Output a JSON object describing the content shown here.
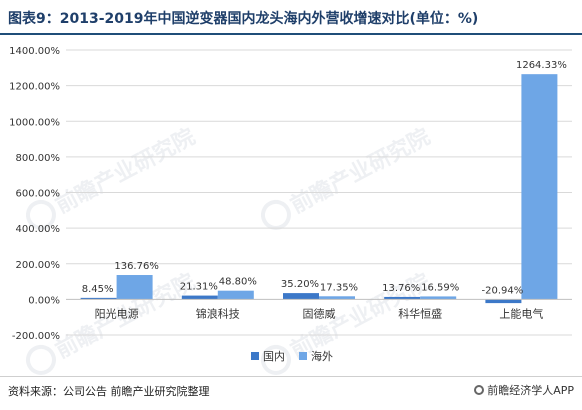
{
  "title": "图表9：2013-2019年中国逆变器国内龙头海内外营收增速对比(单位：%)",
  "source": "资料来源：公司公告  前瞻产业研究院整理",
  "brand": "前瞻经济学人APP",
  "watermark": "前瞻产业研究院",
  "colors": {
    "domestic": "#3c78c8",
    "overseas": "#6ea6e6",
    "grid": "#d9d9d9",
    "title": "#1f3f6a"
  },
  "chart_data": {
    "type": "bar",
    "title": "图表9：2013-2019年中国逆变器国内龙头海内外营收增速对比(单位：%)",
    "categories": [
      "阳光电源",
      "锦浪科技",
      "固德威",
      "科华恒盛",
      "上能电气"
    ],
    "series": [
      {
        "name": "国内",
        "values": [
          8.45,
          21.31,
          35.2,
          13.76,
          -20.94
        ],
        "labels": [
          "8.45%",
          "21.31%",
          "35.20%",
          "13.76%",
          "-20.94%"
        ]
      },
      {
        "name": "海外",
        "values": [
          136.76,
          48.8,
          17.35,
          16.59,
          1264.33
        ],
        "labels": [
          "136.76%",
          "48.80%",
          "17.35%",
          "16.59%",
          "1264.33%"
        ]
      }
    ],
    "ylim": [
      -200,
      1400
    ],
    "yticks": [
      -200,
      0,
      200,
      400,
      600,
      800,
      1000,
      1200,
      1400
    ],
    "ytick_labels": [
      "-200.00%",
      "0.00%",
      "200.00%",
      "400.00%",
      "600.00%",
      "800.00%",
      "1000.00%",
      "1200.00%",
      "1400.00%"
    ],
    "legend": [
      "国内",
      "海外"
    ],
    "legend_position": "bottom",
    "grid": true
  }
}
